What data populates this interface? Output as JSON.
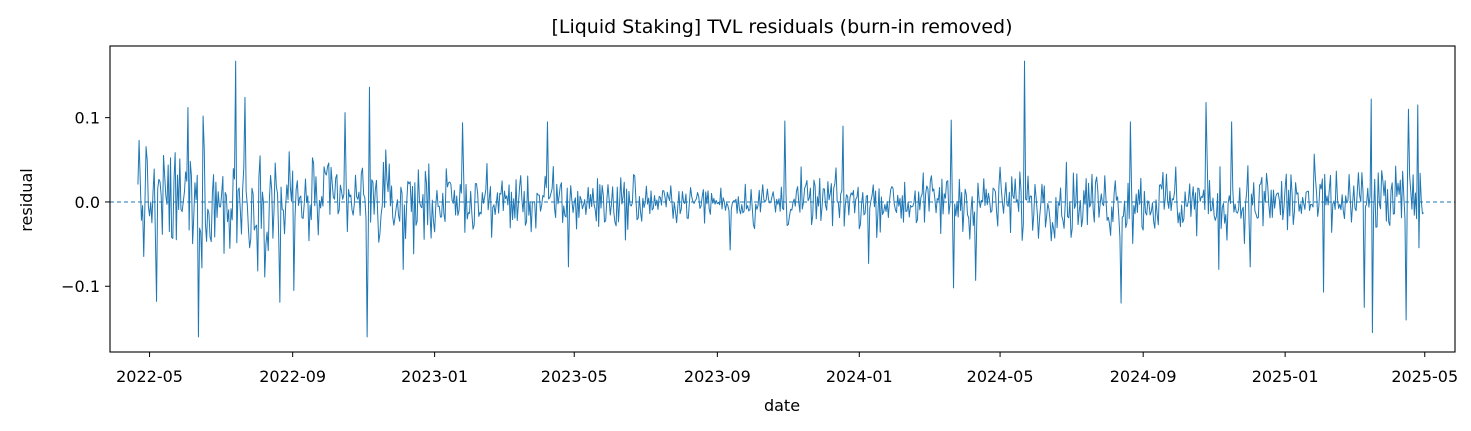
{
  "chart_data": {
    "type": "line",
    "title": "[Liquid Staking] TVL residuals (burn-in removed)",
    "xlabel": "date",
    "ylabel": "residual",
    "x_range": [
      "2022-03-28",
      "2025-05-27"
    ],
    "ylim": [
      -0.178,
      0.185
    ],
    "x_ticks": [
      "2022-05",
      "2022-09",
      "2023-01",
      "2023-05",
      "2023-09",
      "2024-01",
      "2024-05",
      "2024-09",
      "2025-01",
      "2025-05"
    ],
    "y_ticks": [
      {
        "value": 0.1,
        "label": "0.1"
      },
      {
        "value": 0.0,
        "label": "0.0"
      },
      {
        "value": -0.1,
        "label": "−0.1"
      }
    ],
    "reference_line": {
      "y": 0.0,
      "style": "dashed"
    },
    "grid": false,
    "legend": "none",
    "series": [
      {
        "color": "#1f77b4",
        "start_date": "2022-04-21",
        "end_date": "2025-04-30",
        "values_by_period": [
          {
            "from": "2022-04-21",
            "to": "2022-08-31",
            "amplitude": 0.045
          },
          {
            "from": "2022-09-01",
            "to": "2022-12-31",
            "amplitude": 0.035
          },
          {
            "from": "2023-01-01",
            "to": "2023-06-30",
            "amplitude": 0.025
          },
          {
            "from": "2023-07-01",
            "to": "2023-09-30",
            "amplitude": 0.014
          },
          {
            "from": "2023-10-01",
            "to": "2024-02-29",
            "amplitude": 0.022
          },
          {
            "from": "2024-03-01",
            "to": "2024-06-30",
            "amplitude": 0.028
          },
          {
            "from": "2024-07-01",
            "to": "2025-04-30",
            "amplitude": 0.03
          }
        ],
        "points": [
          {
            "x": "2022-04-22",
            "y": 0.073
          },
          {
            "x": "2022-05-07",
            "y": -0.118
          },
          {
            "x": "2022-06-03",
            "y": 0.112
          },
          {
            "x": "2022-06-12",
            "y": -0.16
          },
          {
            "x": "2022-06-16",
            "y": 0.102
          },
          {
            "x": "2022-07-09",
            "y": -0.055
          },
          {
            "x": "2022-07-14",
            "y": 0.167
          },
          {
            "x": "2022-07-22",
            "y": 0.124
          },
          {
            "x": "2022-08-21",
            "y": -0.119
          },
          {
            "x": "2022-09-02",
            "y": -0.105
          },
          {
            "x": "2022-10-16",
            "y": 0.106
          },
          {
            "x": "2022-11-04",
            "y": -0.16
          },
          {
            "x": "2022-11-06",
            "y": 0.136
          },
          {
            "x": "2022-12-05",
            "y": -0.08
          },
          {
            "x": "2023-01-25",
            "y": 0.094
          },
          {
            "x": "2023-04-08",
            "y": 0.095
          },
          {
            "x": "2023-04-26",
            "y": -0.077
          },
          {
            "x": "2023-09-12",
            "y": -0.057
          },
          {
            "x": "2023-10-29",
            "y": 0.096
          },
          {
            "x": "2023-12-18",
            "y": 0.09
          },
          {
            "x": "2024-01-09",
            "y": -0.073
          },
          {
            "x": "2024-03-20",
            "y": 0.097
          },
          {
            "x": "2024-03-22",
            "y": -0.102
          },
          {
            "x": "2024-04-10",
            "y": -0.093
          },
          {
            "x": "2024-05-22",
            "y": 0.167
          },
          {
            "x": "2024-08-13",
            "y": -0.12
          },
          {
            "x": "2024-08-21",
            "y": 0.095
          },
          {
            "x": "2024-10-25",
            "y": 0.118
          },
          {
            "x": "2024-11-05",
            "y": -0.08
          },
          {
            "x": "2024-11-16",
            "y": 0.095
          },
          {
            "x": "2024-12-02",
            "y": -0.077
          },
          {
            "x": "2025-02-03",
            "y": -0.107
          },
          {
            "x": "2025-03-10",
            "y": -0.125
          },
          {
            "x": "2025-03-16",
            "y": 0.122
          },
          {
            "x": "2025-03-17",
            "y": -0.155
          },
          {
            "x": "2025-04-15",
            "y": -0.14
          },
          {
            "x": "2025-04-17",
            "y": 0.11
          },
          {
            "x": "2025-04-25",
            "y": 0.115
          }
        ]
      }
    ]
  }
}
